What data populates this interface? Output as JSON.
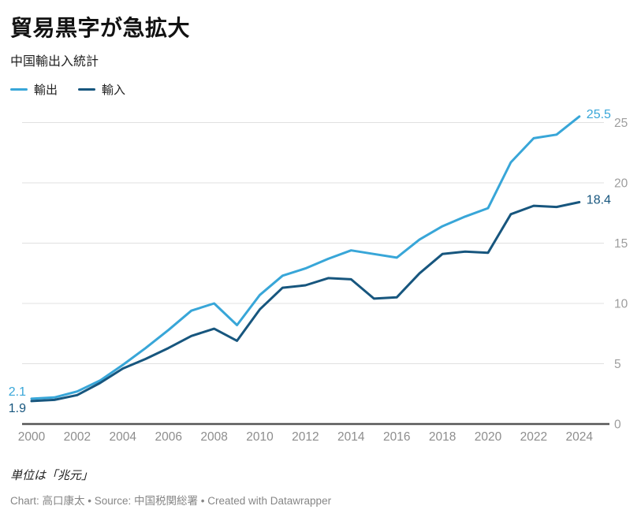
{
  "header": {
    "title": "貿易黒字が急拡大",
    "subtitle": "中国輸出入統計"
  },
  "legend": {
    "items": [
      {
        "id": "exports",
        "label": "輸出",
        "color": "#38a6d8"
      },
      {
        "id": "imports",
        "label": "輸入",
        "color": "#17567e"
      }
    ]
  },
  "footer": {
    "unit_note": "単位は「兆元」",
    "credit": "Chart: 高口康太 • Source: 中国税関総署 • Created with Datawrapper"
  },
  "colors": {
    "exports_line": "#38a6d8",
    "imports_line": "#17567e",
    "gridline": "#e0e0e0",
    "baseline": "#555555",
    "y_tick_text": "#9d9d9d",
    "x_tick_text": "#8d8d8d",
    "title_text": "#121212",
    "credit_text": "#868686",
    "background": "#ffffff"
  },
  "chart_data": {
    "type": "line",
    "title": "貿易黒字が急拡大",
    "subtitle": "中国輸出入統計",
    "unit": "兆元",
    "grid": "horizontal",
    "y_axis_side": "right",
    "legend_position": "top-left",
    "ylim": [
      0,
      26
    ],
    "y_ticks": [
      0,
      5,
      10,
      15,
      20,
      25
    ],
    "x_ticks": [
      2000,
      2002,
      2004,
      2006,
      2008,
      2010,
      2012,
      2014,
      2016,
      2018,
      2020,
      2022,
      2024
    ],
    "x": [
      2000,
      2001,
      2002,
      2003,
      2004,
      2005,
      2006,
      2007,
      2008,
      2009,
      2010,
      2011,
      2012,
      2013,
      2014,
      2015,
      2016,
      2017,
      2018,
      2019,
      2020,
      2021,
      2022,
      2023,
      2024
    ],
    "series": [
      {
        "id": "exports",
        "name": "輸出",
        "color": "#38a6d8",
        "start_label": "2.1",
        "end_label": "25.5",
        "values": [
          2.1,
          2.2,
          2.7,
          3.6,
          4.9,
          6.3,
          7.8,
          9.4,
          10.0,
          8.2,
          10.7,
          12.3,
          12.9,
          13.7,
          14.4,
          14.1,
          13.8,
          15.3,
          16.4,
          17.2,
          17.9,
          21.7,
          23.7,
          24.0,
          25.5
        ]
      },
      {
        "id": "imports",
        "name": "輸入",
        "color": "#17567e",
        "start_label": "1.9",
        "end_label": "18.4",
        "values": [
          1.9,
          2.0,
          2.4,
          3.4,
          4.6,
          5.4,
          6.3,
          7.3,
          7.9,
          6.9,
          9.5,
          11.3,
          11.5,
          12.1,
          12.0,
          10.4,
          10.5,
          12.5,
          14.1,
          14.3,
          14.2,
          17.4,
          18.1,
          18.0,
          18.4
        ]
      }
    ]
  }
}
